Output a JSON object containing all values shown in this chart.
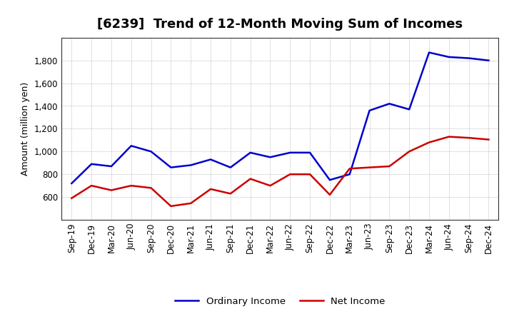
{
  "title": "[6239]  Trend of 12-Month Moving Sum of Incomes",
  "ylabel": "Amount (million yen)",
  "x_labels": [
    "Sep-19",
    "Dec-19",
    "Mar-20",
    "Jun-20",
    "Sep-20",
    "Dec-20",
    "Mar-21",
    "Jun-21",
    "Sep-21",
    "Dec-21",
    "Mar-22",
    "Jun-22",
    "Sep-22",
    "Dec-22",
    "Mar-23",
    "Jun-23",
    "Sep-23",
    "Dec-23",
    "Mar-24",
    "Jun-24",
    "Sep-24",
    "Dec-24"
  ],
  "ordinary_income": [
    720,
    890,
    870,
    1050,
    1000,
    860,
    880,
    930,
    860,
    990,
    950,
    990,
    990,
    750,
    800,
    1360,
    1420,
    1370,
    1870,
    1830,
    1820,
    1800
  ],
  "net_income": [
    590,
    700,
    660,
    700,
    680,
    520,
    545,
    670,
    630,
    760,
    700,
    800,
    800,
    620,
    850,
    860,
    870,
    1000,
    1080,
    1130,
    1120,
    1105
  ],
  "ordinary_color": "#0000cc",
  "net_color": "#cc0000",
  "bg_color": "#ffffff",
  "plot_bg_color": "#ffffff",
  "ylim_min": 400,
  "ylim_max": 2000,
  "yticks": [
    600,
    800,
    1000,
    1200,
    1400,
    1600,
    1800
  ],
  "grid_color": "#999999",
  "line_width": 1.8,
  "legend_labels": [
    "Ordinary Income",
    "Net Income"
  ],
  "title_fontsize": 13,
  "ylabel_fontsize": 9,
  "tick_fontsize": 8.5
}
